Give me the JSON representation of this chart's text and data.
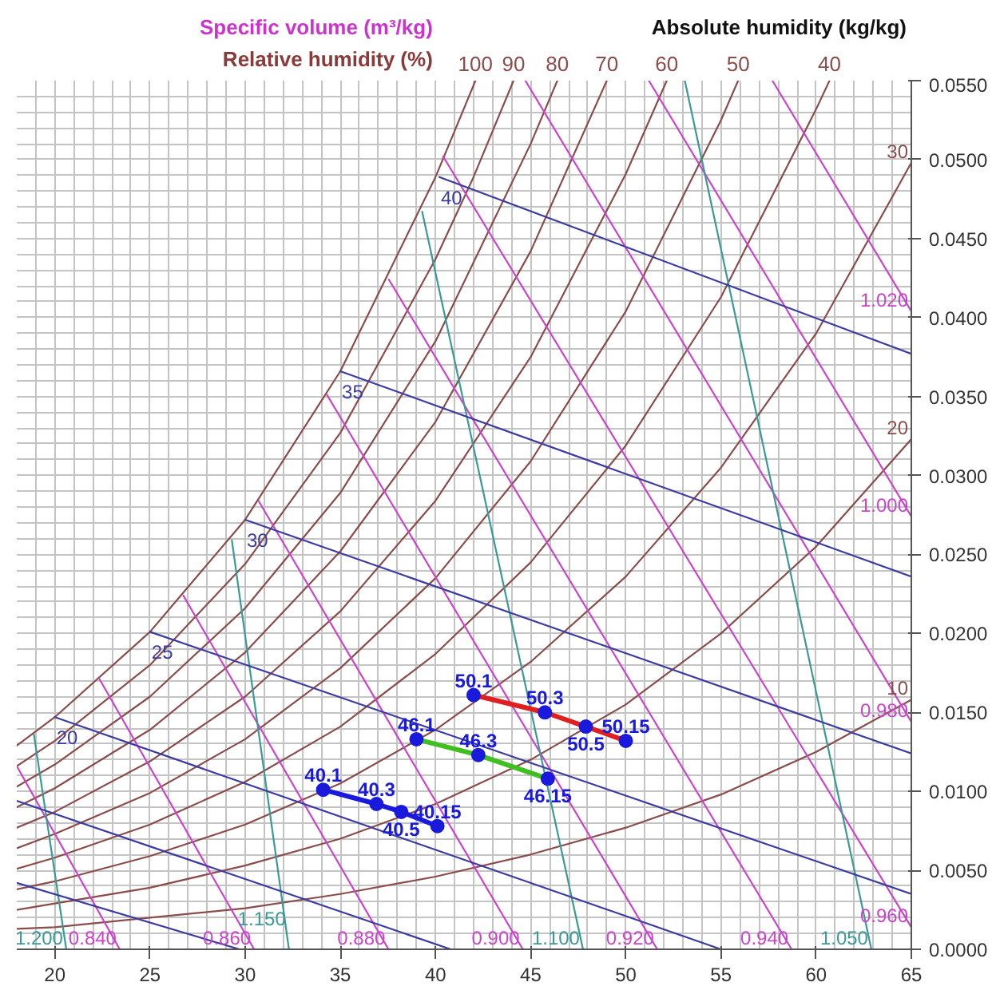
{
  "chart_data": {
    "type": "line",
    "ylabel": "Absolute humidity (kg/kg)",
    "annotations": [
      "Specific volume (m³/kg)",
      "Relative humidity (%)",
      {
        "text": "50.1",
        "x": 42.0,
        "y": 0.0161
      },
      {
        "text": "50.3",
        "x": 45.75,
        "y": 0.015
      },
      {
        "text": "50.5",
        "x": 47.9,
        "y": 0.0141
      },
      {
        "text": "50.15",
        "x": 50.0,
        "y": 0.0132
      },
      {
        "text": "46.1",
        "x": 39.0,
        "y": 0.0133
      },
      {
        "text": "46.3",
        "x": 42.25,
        "y": 0.0123
      },
      {
        "text": "46.15",
        "x": 45.9,
        "y": 0.0108
      },
      {
        "text": "40.1",
        "x": 34.1,
        "y": 0.0101
      },
      {
        "text": "40.3",
        "x": 36.9,
        "y": 0.0092
      },
      {
        "text": "40.5",
        "x": 38.2,
        "y": 0.0087
      },
      {
        "text": "40.15",
        "x": 40.1,
        "y": 0.0078
      }
    ],
    "xlim": [
      18,
      65
    ],
    "ylim": [
      0,
      0.055
    ],
    "grid": true,
    "marker": "none",
    "line_style": "solid",
    "xticks": [
      {
        "value": 19,
        "label": null
      },
      20,
      {
        "value": 21,
        "label": null
      },
      {
        "value": 22,
        "label": null
      },
      {
        "value": 23,
        "label": null
      },
      {
        "value": 24,
        "label": null
      },
      25,
      {
        "value": 26,
        "label": null
      },
      {
        "value": 27,
        "label": null
      },
      {
        "value": 28,
        "label": null
      },
      {
        "value": 29,
        "label": null
      },
      30,
      {
        "value": 31,
        "label": null
      },
      {
        "value": 32,
        "label": null
      },
      {
        "value": 33,
        "label": null
      },
      {
        "value": 34,
        "label": null
      },
      35,
      {
        "value": 36,
        "label": null
      },
      {
        "value": 37,
        "label": null
      },
      {
        "value": 38,
        "label": null
      },
      {
        "value": 39,
        "label": null
      },
      40,
      {
        "value": 41,
        "label": null
      },
      {
        "value": 42,
        "label": null
      },
      {
        "value": 43,
        "label": null
      },
      {
        "value": 44,
        "label": null
      },
      45,
      {
        "value": 46,
        "label": null
      },
      {
        "value": 47,
        "label": null
      },
      {
        "value": 48,
        "label": null
      },
      {
        "value": 49,
        "label": null
      },
      50,
      {
        "value": 51,
        "label": null
      },
      {
        "value": 52,
        "label": null
      },
      {
        "value": 53,
        "label": null
      },
      {
        "value": 54,
        "label": null
      },
      55,
      {
        "value": 56,
        "label": null
      },
      {
        "value": 57,
        "label": null
      },
      {
        "value": 58,
        "label": null
      },
      {
        "value": 59,
        "label": null
      },
      60,
      {
        "value": 61,
        "label": null
      },
      {
        "value": 62,
        "label": null
      },
      {
        "value": 63,
        "label": null
      },
      {
        "value": 64,
        "label": null
      },
      65
    ],
    "yticks": [
      {
        "value": 0,
        "label": "0.0000"
      },
      {
        "value": 0.001,
        "label": null
      },
      {
        "value": 0.002,
        "label": null
      },
      {
        "value": 0.003,
        "label": null
      },
      {
        "value": 0.004,
        "label": null
      },
      {
        "value": 0.005,
        "label": "0.0050"
      },
      {
        "value": 0.006,
        "label": null
      },
      {
        "value": 0.007,
        "label": null
      },
      {
        "value": 0.008,
        "label": null
      },
      {
        "value": 0.009,
        "label": null
      },
      {
        "value": 0.01,
        "label": "0.0100"
      },
      {
        "value": 0.011,
        "label": null
      },
      {
        "value": 0.012,
        "label": null
      },
      {
        "value": 0.013,
        "label": null
      },
      {
        "value": 0.014,
        "label": null
      },
      {
        "value": 0.015,
        "label": "0.0150"
      },
      {
        "value": 0.016,
        "label": null
      },
      {
        "value": 0.017,
        "label": null
      },
      {
        "value": 0.018,
        "label": null
      },
      {
        "value": 0.019,
        "label": null
      },
      {
        "value": 0.02,
        "label": "0.0200"
      },
      {
        "value": 0.021,
        "label": null
      },
      {
        "value": 0.022,
        "label": null
      },
      {
        "value": 0.023,
        "label": null
      },
      {
        "value": 0.024,
        "label": null
      },
      {
        "value": 0.025,
        "label": "0.0250"
      },
      {
        "value": 0.026,
        "label": null
      },
      {
        "value": 0.027,
        "label": null
      },
      {
        "value": 0.028,
        "label": null
      },
      {
        "value": 0.029,
        "label": null
      },
      {
        "value": 0.03,
        "label": "0.0300"
      },
      {
        "value": 0.031,
        "label": null
      },
      {
        "value": 0.032,
        "label": null
      },
      {
        "value": 0.033,
        "label": null
      },
      {
        "value": 0.034,
        "label": null
      },
      {
        "value": 0.035,
        "label": "0.0350"
      },
      {
        "value": 0.036,
        "label": null
      },
      {
        "value": 0.037,
        "label": null
      },
      {
        "value": 0.038,
        "label": null
      },
      {
        "value": 0.039,
        "label": null
      },
      {
        "value": 0.04,
        "label": "0.0400"
      },
      {
        "value": 0.041,
        "label": null
      },
      {
        "value": 0.042,
        "label": null
      },
      {
        "value": 0.043,
        "label": null
      },
      {
        "value": 0.044,
        "label": null
      },
      {
        "value": 0.045,
        "label": "0.0450"
      },
      {
        "value": 0.046,
        "label": null
      },
      {
        "value": 0.047,
        "label": null
      },
      {
        "value": 0.048,
        "label": null
      },
      {
        "value": 0.049,
        "label": null
      },
      {
        "value": 0.05,
        "label": "0.0500"
      },
      {
        "value": 0.051,
        "label": null
      },
      {
        "value": 0.052,
        "label": null
      },
      {
        "value": 0.053,
        "label": null
      },
      {
        "value": 0.054,
        "label": null
      },
      {
        "value": 0.055,
        "label": "0.0550"
      }
    ],
    "series": [
      {
        "name": "100",
        "color": "#8b4c4c",
        "x": [
          18,
          20,
          25,
          30,
          35,
          40,
          41,
          42.1
        ],
        "values": [
          0.0129,
          0.0147,
          0.0201,
          0.0272,
          0.0366,
          0.0489,
          0.0518,
          0.055
        ]
      },
      {
        "name": "90",
        "color": "#8b4c4c",
        "x": [
          18,
          20,
          25,
          30,
          35,
          40,
          42,
          44.1
        ],
        "values": [
          0.0116,
          0.0132,
          0.018,
          0.0244,
          0.0327,
          0.0437,
          0.0489,
          0.055
        ]
      },
      {
        "name": "80",
        "color": "#8b4c4c",
        "x": [
          18,
          20,
          25,
          30,
          35,
          40,
          45,
          46.4
        ],
        "values": [
          0.0103,
          0.0117,
          0.016,
          0.0216,
          0.0289,
          0.0385,
          0.051,
          0.055
        ]
      },
      {
        "name": "70",
        "color": "#8b4c4c",
        "x": [
          18,
          20,
          25,
          30,
          35,
          40,
          45,
          49
        ],
        "values": [
          0.009,
          0.0102,
          0.0139,
          0.0188,
          0.0252,
          0.0334,
          0.0442,
          0.055
        ]
      },
      {
        "name": "60",
        "color": "#8b4c4c",
        "x": [
          18,
          20,
          25,
          30,
          35,
          40,
          45,
          50,
          52.15
        ],
        "values": [
          0.0077,
          0.0087,
          0.0119,
          0.016,
          0.0214,
          0.0284,
          0.0375,
          0.0491,
          0.055
        ]
      },
      {
        "name": "50",
        "color": "#8b4c4c",
        "x": [
          18,
          20,
          25,
          30,
          35,
          40,
          45,
          50,
          55,
          55.9
        ],
        "values": [
          0.0064,
          0.0073,
          0.0099,
          0.0133,
          0.0178,
          0.0235,
          0.0309,
          0.0404,
          0.0525,
          0.055
        ]
      },
      {
        "name": "40",
        "color": "#8b4c4c",
        "x": [
          18,
          20,
          25,
          30,
          35,
          40,
          45,
          50,
          55,
          60,
          60.7
        ],
        "values": [
          0.0051,
          0.0058,
          0.0079,
          0.0106,
          0.0141,
          0.0187,
          0.0245,
          0.0319,
          0.0413,
          0.0532,
          0.055
        ]
      },
      {
        "name": "30",
        "color": "#8b4c4c",
        "x": [
          18,
          20,
          25,
          30,
          35,
          40,
          45,
          50,
          55,
          60,
          65
        ],
        "values": [
          0.0038,
          0.0043,
          0.0059,
          0.0079,
          0.0105,
          0.0139,
          0.0182,
          0.0236,
          0.0305,
          0.039,
          0.0498
        ]
      },
      {
        "name": "20",
        "color": "#8b4c4c",
        "x": [
          18,
          20,
          25,
          30,
          35,
          40,
          45,
          50,
          55,
          60,
          65
        ],
        "values": [
          0.0025,
          0.0029,
          0.0039,
          0.0053,
          0.007,
          0.0092,
          0.012,
          0.0155,
          0.02,
          0.0255,
          0.0323
        ]
      },
      {
        "name": "10",
        "color": "#8b4c4c",
        "x": [
          18,
          20,
          25,
          30,
          35,
          40,
          45,
          50,
          55,
          60,
          65
        ],
        "values": [
          0.0013,
          0.0014,
          0.002,
          0.0026,
          0.0035,
          0.0046,
          0.006,
          0.0077,
          0.0098,
          0.0125,
          0.0158
        ]
      },
      {
        "name": "0.840",
        "color": "#cc44cc",
        "x": [
          18,
          23.41
        ],
        "values": [
          0.0116,
          0
        ]
      },
      {
        "name": "0.860",
        "color": "#cc44cc",
        "x": [
          22.35,
          30.47
        ],
        "values": [
          0.0171,
          0
        ]
      },
      {
        "name": "0.880",
        "color": "#cc44cc",
        "x": [
          26.75,
          37.53
        ],
        "values": [
          0.0224,
          0
        ]
      },
      {
        "name": "0.900",
        "color": "#cc44cc",
        "x": [
          30.7,
          44.59
        ],
        "values": [
          0.0284,
          0
        ]
      },
      {
        "name": "0.920",
        "color": "#cc44cc",
        "x": [
          34.3,
          51.65
        ],
        "values": [
          0.0351,
          0
        ]
      },
      {
        "name": "0.940",
        "color": "#cc44cc",
        "x": [
          37.55,
          58.71
        ],
        "values": [
          0.0424,
          0
        ]
      },
      {
        "name": "0.960",
        "color": "#cc44cc",
        "x": [
          40.4,
          65
        ],
        "values": [
          0.0502,
          0.0014
        ]
      },
      {
        "name": "0.980",
        "color": "#cc44cc",
        "x": [
          44.72,
          65
        ],
        "values": [
          0.055,
          0.0144
        ]
      },
      {
        "name": "1.000",
        "color": "#cc44cc",
        "x": [
          51.21,
          65
        ],
        "values": [
          0.055,
          0.0274
        ]
      },
      {
        "name": "1.020",
        "color": "#cc44cc",
        "x": [
          57.7,
          65
        ],
        "values": [
          0.055,
          0.0404
        ]
      },
      {
        "name": "1.200",
        "color": "#3a9a96",
        "x": [
          18.9,
          20.6
        ],
        "values": [
          0.0136,
          0
        ]
      },
      {
        "name": "1.150",
        "color": "#3a9a96",
        "x": [
          29.3,
          32.3
        ],
        "values": [
          0.0259,
          0
        ]
      },
      {
        "name": "1.100",
        "color": "#3a9a96",
        "x": [
          39.3,
          47.75
        ],
        "values": [
          0.0467,
          0
        ]
      },
      {
        "name": "1.050",
        "color": "#3a9a96",
        "x": [
          53.1,
          62.9
        ],
        "values": [
          0.055,
          0
        ]
      },
      {
        "color": "#3c3ca0",
        "x": [
          29.7,
          18
        ],
        "values": [
          0,
          0.0042
        ]
      },
      {
        "color": "#3c3ca0",
        "x": [
          40.8,
          18
        ],
        "values": [
          0,
          0.0094
        ]
      },
      {
        "name": "20",
        "color": "#3c3ca0",
        "x": [
          55,
          20
        ],
        "values": [
          0,
          0.0147
        ]
      },
      {
        "name": "25",
        "color": "#3c3ca0",
        "x": [
          65,
          25
        ],
        "values": [
          0.0035,
          0.0201
        ]
      },
      {
        "name": "30",
        "color": "#3c3ca0",
        "x": [
          65,
          30
        ],
        "values": [
          0.0124,
          0.0272
        ]
      },
      {
        "name": "35",
        "color": "#3c3ca0",
        "x": [
          65,
          35
        ],
        "values": [
          0.0236,
          0.0366
        ]
      },
      {
        "name": "40",
        "color": "#3c3ca0",
        "x": [
          65,
          40.2
        ],
        "values": [
          0.0377,
          0.0489
        ]
      },
      {
        "color": "#e02020",
        "marker": "circle",
        "colors": [
          "#1a1adc",
          "#1a1adc",
          "#1a1adc",
          "#1a1adc"
        ],
        "x": [
          42.0,
          45.75,
          47.9,
          50.0
        ],
        "values": [
          0.0161,
          0.015,
          0.0141,
          0.0132
        ]
      },
      {
        "color": "#40c020",
        "marker": "circle",
        "colors": [
          "#1a1adc",
          "#1a1adc",
          "#1a1adc"
        ],
        "x": [
          39.0,
          42.25,
          45.9
        ],
        "values": [
          0.0133,
          0.0123,
          0.0108
        ]
      },
      {
        "color": "#1a1adc",
        "marker": "circle",
        "colors": [
          "#1a1adc",
          "#1a1adc",
          "#1a1adc",
          "#1a1adc"
        ],
        "x": [
          34.1,
          36.9,
          38.2,
          40.1
        ],
        "values": [
          0.0101,
          0.0092,
          0.0087,
          0.0078
        ]
      }
    ]
  }
}
